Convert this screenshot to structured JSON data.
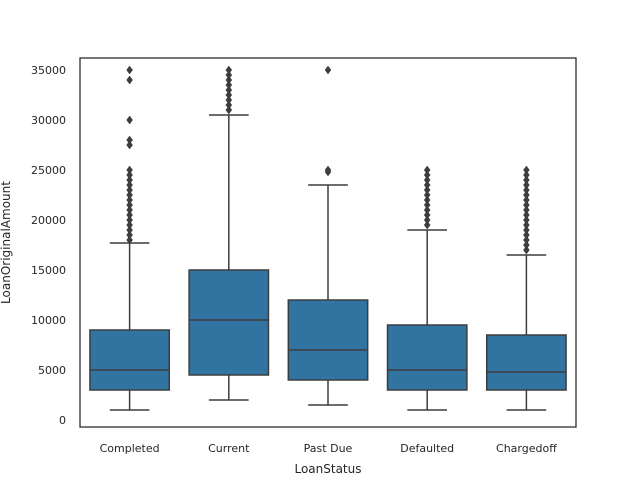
{
  "chart_data": {
    "type": "box",
    "xlabel": "LoanStatus",
    "ylabel": "LoanOriginalAmount",
    "ylim": [
      -700,
      36200
    ],
    "y_ticks": [
      0,
      5000,
      10000,
      15000,
      20000,
      25000,
      30000,
      35000
    ],
    "y_tick_labels": [
      "0",
      "5000",
      "10000",
      "15000",
      "20000",
      "25000",
      "30000",
      "35000"
    ],
    "grid": false,
    "legend": "none",
    "box_color": "#3274a1",
    "line_color": "#3d3d3d",
    "categories": [
      "Completed",
      "Current",
      "Past Due",
      "Defaulted",
      "Chargedoff"
    ],
    "boxes": [
      {
        "category": "Completed",
        "whisker_low": 1000,
        "q1": 3000,
        "median": 5000,
        "q3": 9000,
        "whisker_high": 17700,
        "outliers": [
          18000,
          18500,
          19000,
          19500,
          20000,
          20500,
          21000,
          21500,
          22000,
          22500,
          23000,
          23500,
          24000,
          24500,
          25000,
          27500,
          28000,
          30000,
          34000,
          35000
        ]
      },
      {
        "category": "Current",
        "whisker_low": 2000,
        "q1": 4500,
        "median": 10000,
        "q3": 15000,
        "whisker_high": 30500,
        "outliers": [
          31000,
          31500,
          32000,
          32500,
          33000,
          33500,
          34000,
          34500,
          35000
        ]
      },
      {
        "category": "Past Due",
        "whisker_low": 1500,
        "q1": 4000,
        "median": 7000,
        "q3": 12000,
        "whisker_high": 23500,
        "outliers": [
          24800,
          25000,
          35000
        ]
      },
      {
        "category": "Defaulted",
        "whisker_low": 1000,
        "q1": 3000,
        "median": 5000,
        "q3": 9500,
        "whisker_high": 19000,
        "outliers": [
          19500,
          20000,
          20500,
          21000,
          21500,
          22000,
          22500,
          23000,
          23500,
          24000,
          24500,
          25000
        ]
      },
      {
        "category": "Chargedoff",
        "whisker_low": 1000,
        "q1": 3000,
        "median": 4800,
        "q3": 8500,
        "whisker_high": 16500,
        "outliers": [
          17000,
          17500,
          18000,
          18500,
          19000,
          19500,
          20000,
          20500,
          21000,
          21500,
          22000,
          22500,
          23000,
          23500,
          24000,
          24500,
          25000
        ]
      }
    ]
  }
}
